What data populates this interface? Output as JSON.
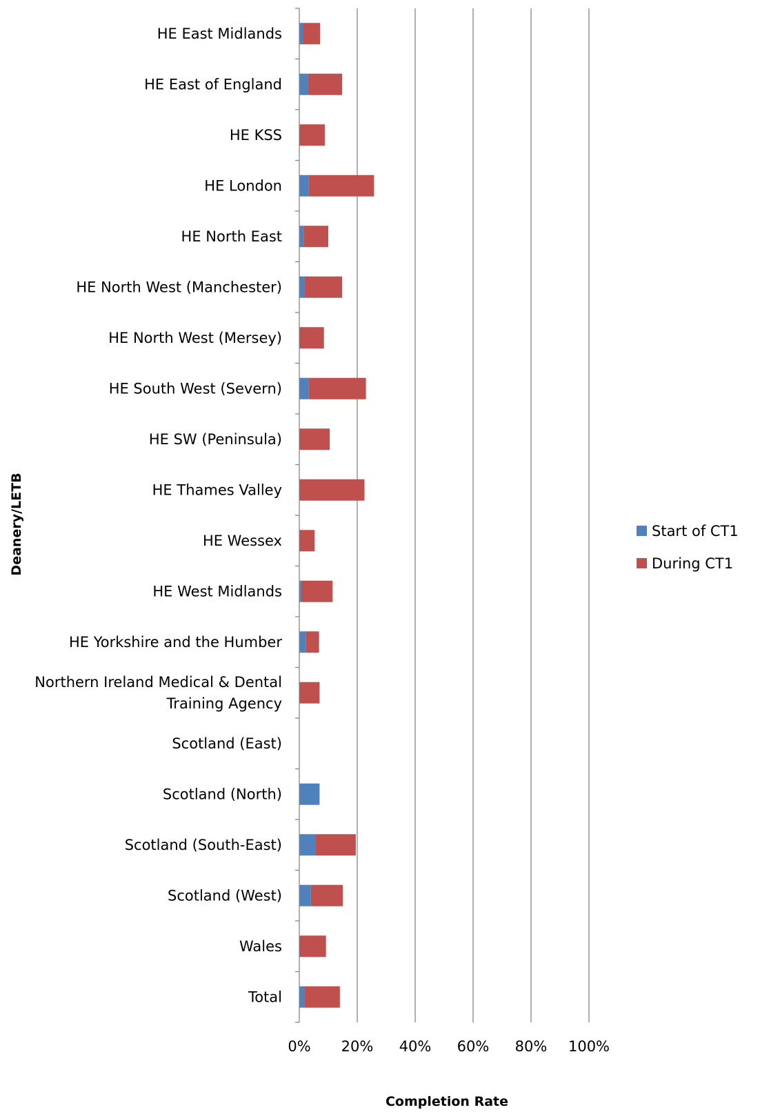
{
  "chart_data": {
    "type": "bar",
    "orientation": "horizontal",
    "stacked": true,
    "categories": [
      "HE East Midlands",
      "HE East of England",
      "HE KSS",
      "HE London",
      "HE North East",
      "HE North West (Manchester)",
      "HE North West (Mersey)",
      "HE South West (Severn)",
      "HE SW (Peninsula)",
      "HE Thames Valley",
      "HE Wessex",
      "HE West Midlands",
      "HE Yorkshire and the Humber",
      "Northern Ireland Medical & Dental Training Agency",
      "Scotland (East)",
      "Scotland (North)",
      "Scotland (South-East)",
      "Scotland (West)",
      "Wales",
      "Total"
    ],
    "series": [
      {
        "name": "Start of CT1",
        "color": "#4F81BD",
        "values": [
          1.2,
          3.0,
          0,
          3.3,
          1.5,
          1.8,
          0,
          3.3,
          0,
          0,
          0,
          0.7,
          2.2,
          0,
          0,
          7.0,
          5.5,
          4.0,
          0,
          1.8
        ]
      },
      {
        "name": "During CT1",
        "color": "#C0504D",
        "values": [
          6.0,
          11.8,
          8.8,
          22.5,
          8.5,
          13.0,
          8.5,
          19.7,
          10.5,
          22.5,
          5.3,
          10.8,
          4.6,
          7.0,
          0,
          0,
          14.0,
          11.0,
          9.2,
          12.2
        ]
      }
    ],
    "xlabel": "Completion Rate",
    "ylabel": "Deanery/LETB",
    "xlim": [
      0,
      100
    ],
    "x_ticks": [
      "0%",
      "20%",
      "40%",
      "60%",
      "80%",
      "100%"
    ],
    "grid": true,
    "legend": "right"
  }
}
